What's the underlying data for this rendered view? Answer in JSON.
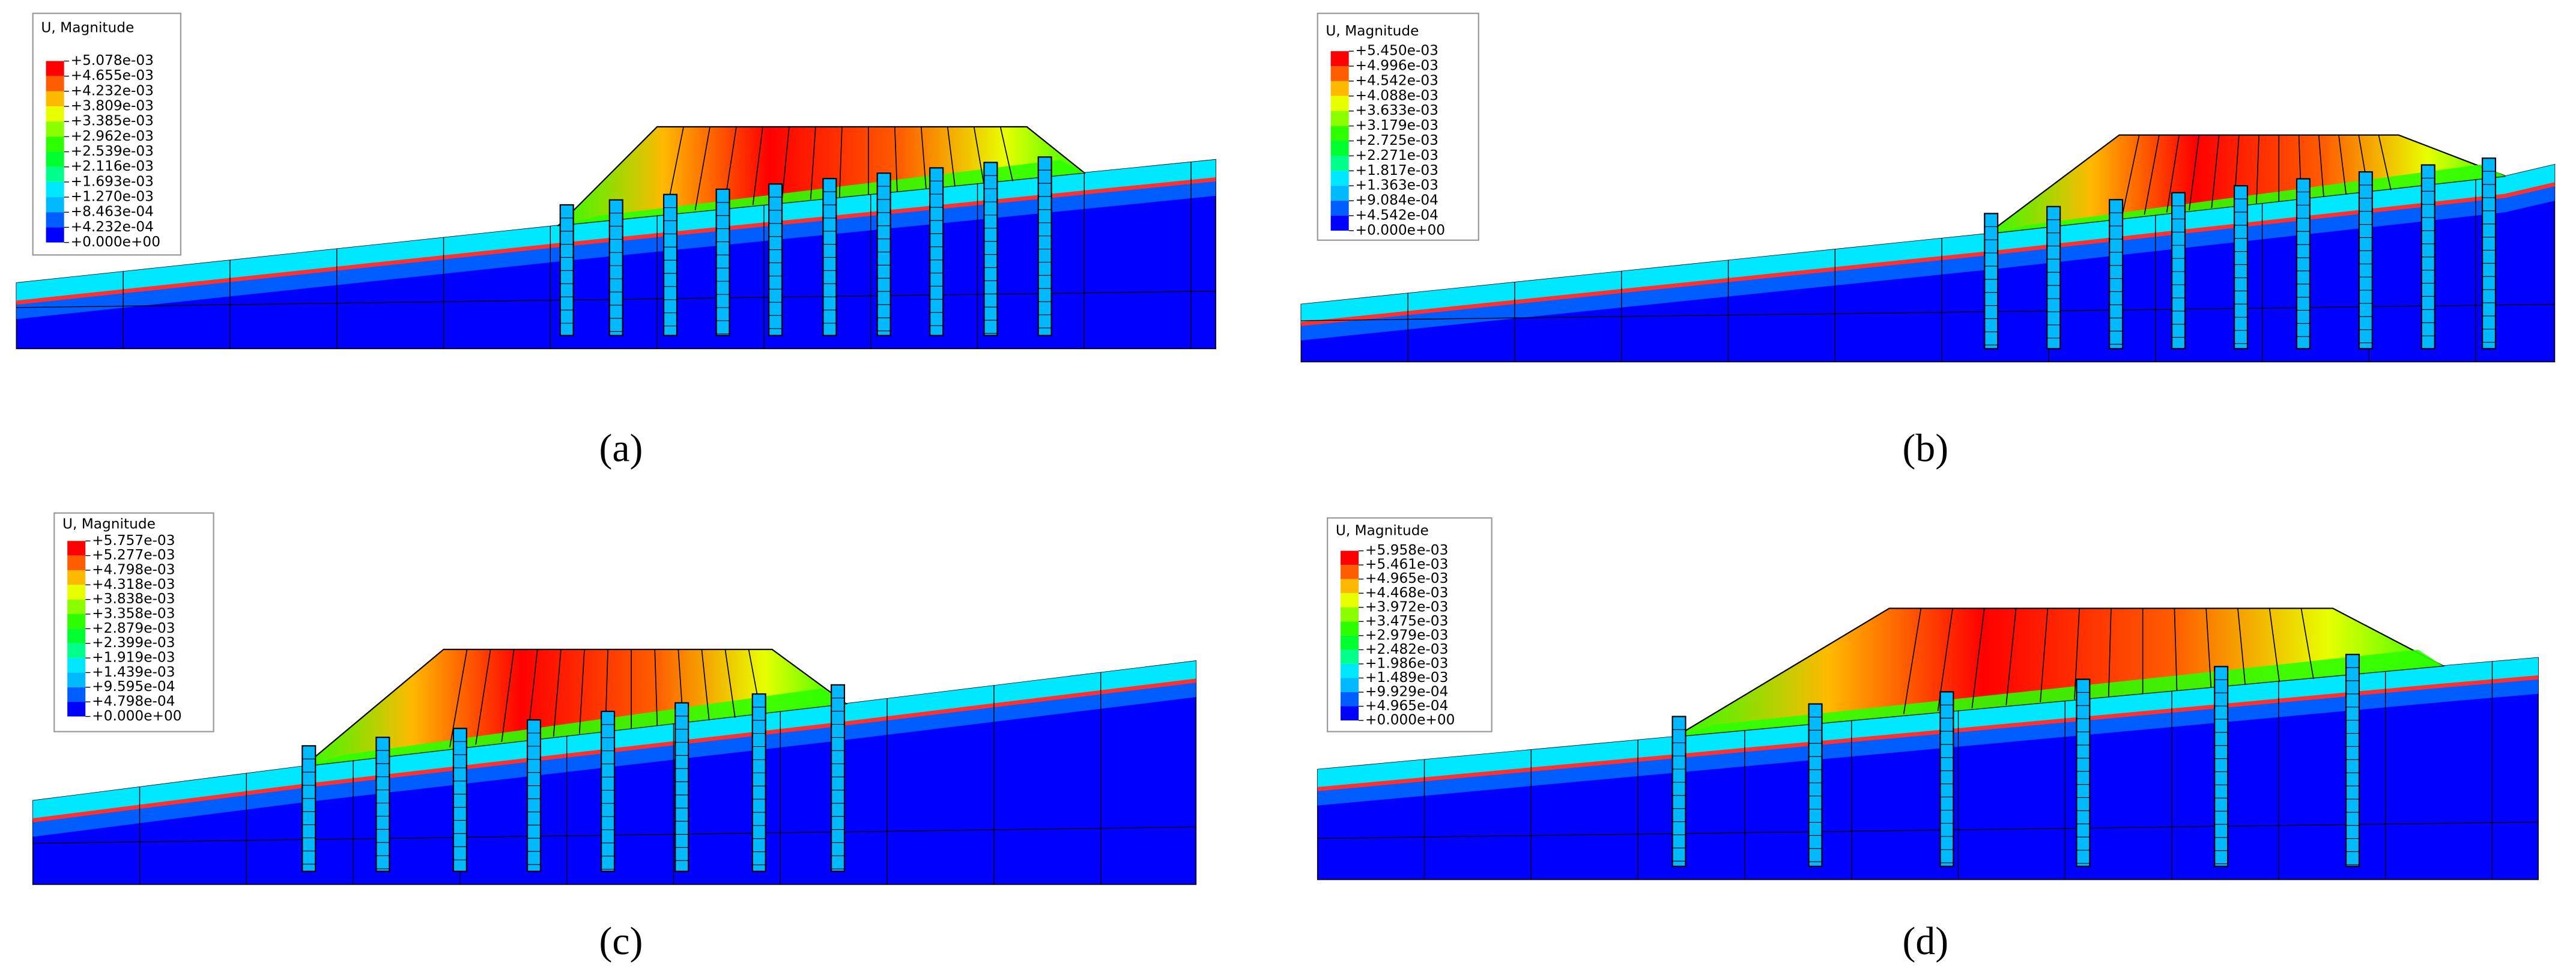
{
  "panels": [
    {
      "legend_title": "U, Magnitude",
      "caption": "(a)",
      "legend_values": [
        "+5.078e-03",
        "+4.655e-03",
        "+4.232e-03",
        "+3.809e-03",
        "+3.385e-03",
        "+2.962e-03",
        "+2.539e-03",
        "+2.116e-03",
        "+1.693e-03",
        "+1.270e-03",
        "+8.463e-04",
        "+4.232e-04",
        "+0.000e+00"
      ]
    },
    {
      "legend_title": "U, Magnitude",
      "caption": "(b)",
      "legend_values": [
        "+5.450e-03",
        "+4.996e-03",
        "+4.542e-03",
        "+4.088e-03",
        "+3.633e-03",
        "+3.179e-03",
        "+2.725e-03",
        "+2.271e-03",
        "+1.817e-03",
        "+1.363e-03",
        "+9.084e-04",
        "+4.542e-04",
        "+0.000e+00"
      ]
    },
    {
      "legend_title": "U, Magnitude",
      "caption": "(c)",
      "legend_values": [
        "+5.757e-03",
        "+5.277e-03",
        "+4.798e-03",
        "+4.318e-03",
        "+3.838e-03",
        "+3.358e-03",
        "+2.879e-03",
        "+2.399e-03",
        "+1.919e-03",
        "+1.439e-03",
        "+9.595e-04",
        "+4.798e-04",
        "+0.000e+00"
      ]
    },
    {
      "legend_title": "U, Magnitude",
      "caption": "(d)",
      "legend_values": [
        "+5.958e-03",
        "+5.461e-03",
        "+4.965e-03",
        "+4.468e-03",
        "+3.972e-03",
        "+3.475e-03",
        "+2.979e-03",
        "+2.482e-03",
        "+1.986e-03",
        "+1.489e-03",
        "+9.929e-04",
        "+4.965e-04",
        "+0.000e+00"
      ]
    }
  ]
}
